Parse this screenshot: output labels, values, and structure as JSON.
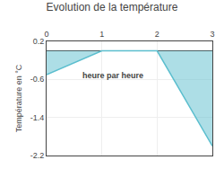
{
  "chart_data": {
    "type": "area",
    "title": "Evolution de la température",
    "xlabel": "heure par heure",
    "ylabel": "Température en °C",
    "x": [
      0,
      1,
      2,
      3
    ],
    "values": [
      -0.5,
      0.0,
      0.0,
      -2.0
    ],
    "color": "#5bbece",
    "xlim": [
      0,
      3
    ],
    "xticks": [
      0,
      1,
      2,
      3
    ],
    "ylim": [
      -2.2,
      0.2
    ],
    "yticks": [
      0.2,
      -0.6,
      -1.4,
      -2.2
    ],
    "grid": true
  }
}
